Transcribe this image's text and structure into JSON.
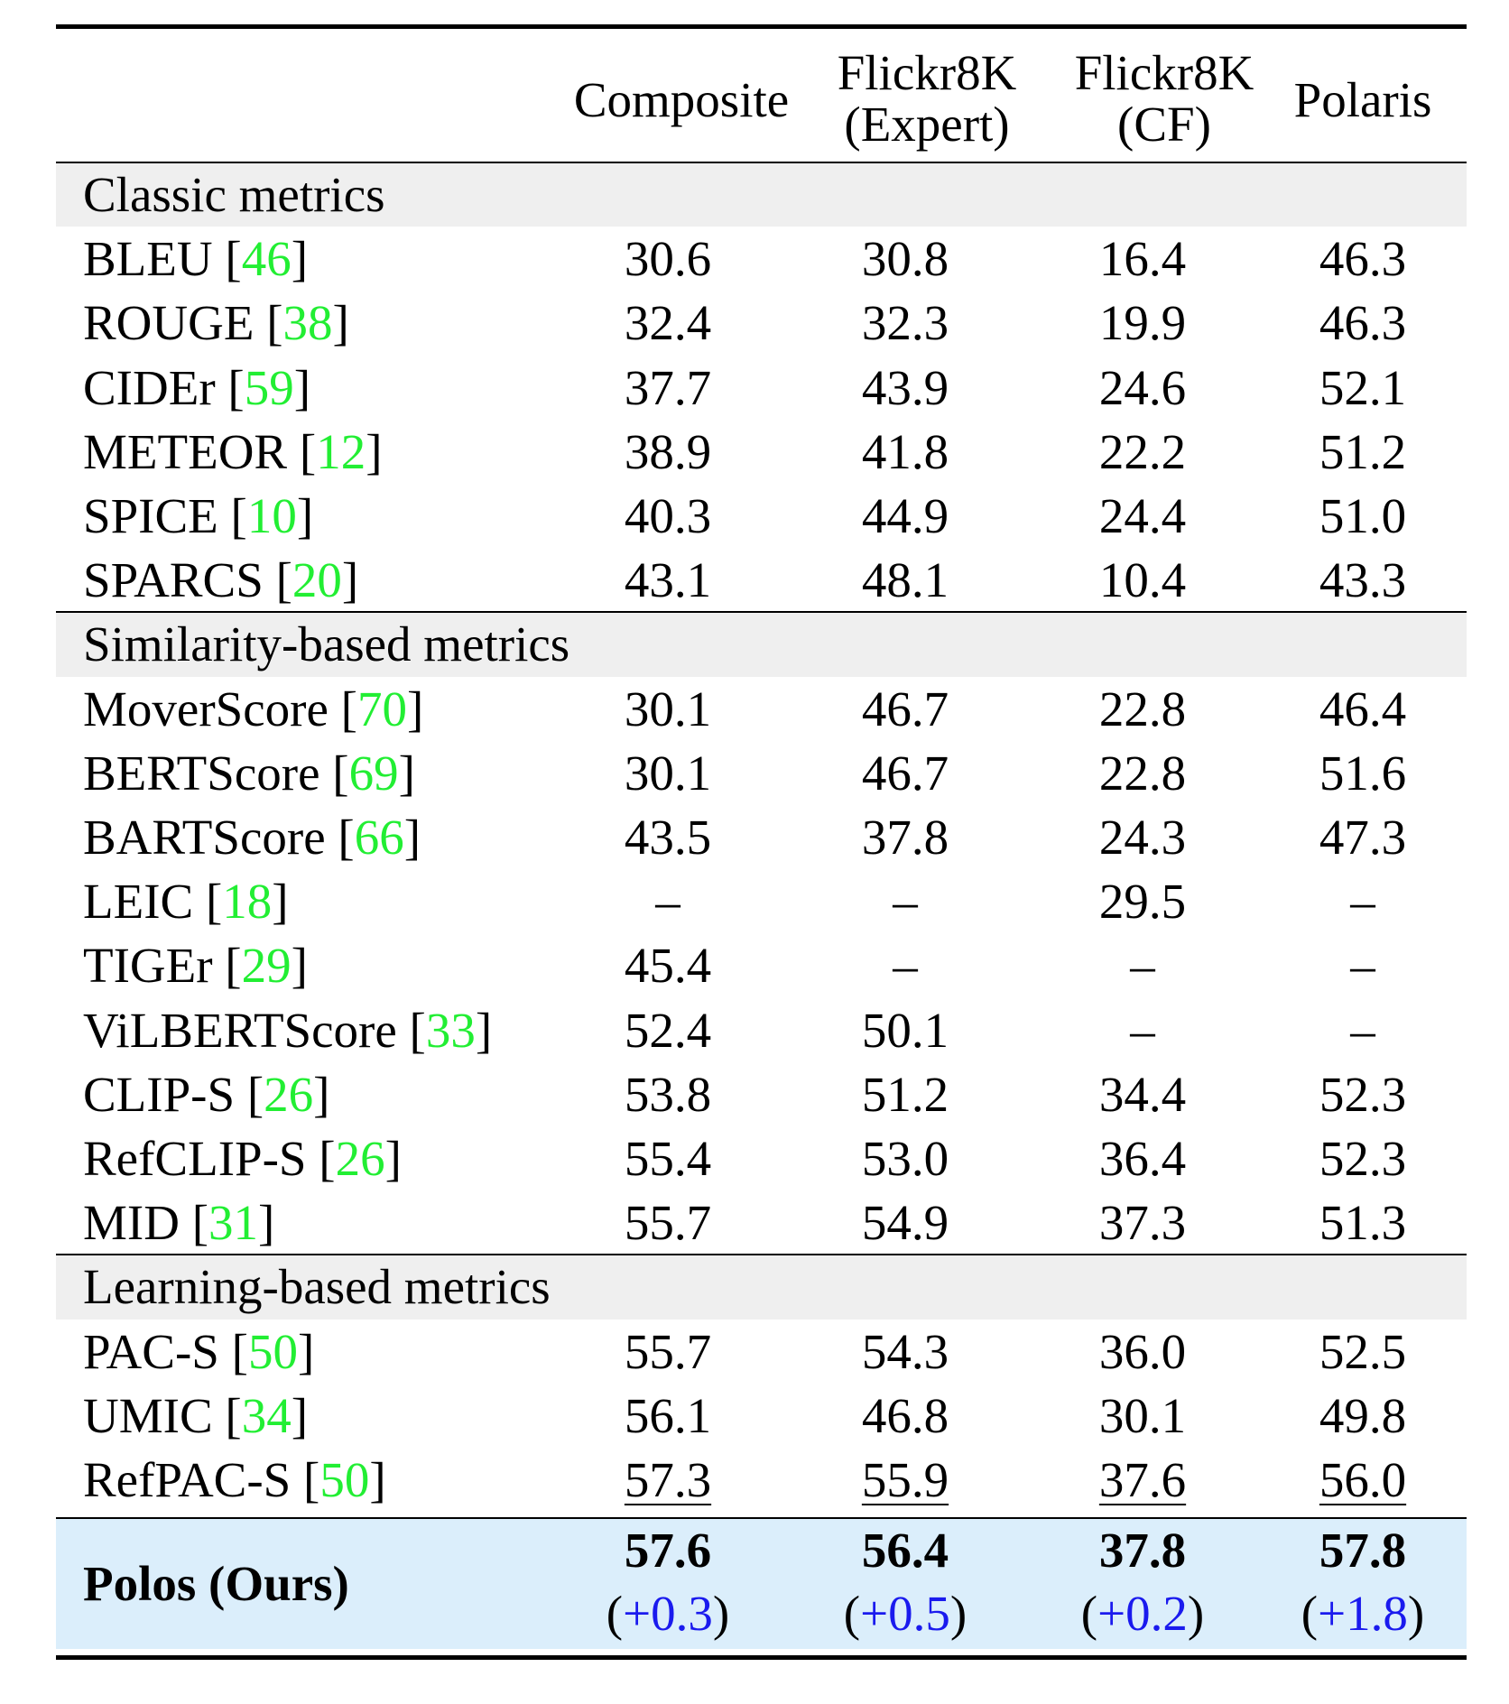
{
  "columns": [
    "",
    "Composite",
    "Flickr8K\n(Expert)",
    "Flickr8K\n(CF)",
    "Polaris"
  ],
  "header": {
    "composite": "Composite",
    "expert_l1": "Flickr8K",
    "expert_l2": "(Expert)",
    "cf_l1": "Flickr8K",
    "cf_l2": "(CF)",
    "polaris": "Polaris"
  },
  "colors": {
    "citation": "#22ee33",
    "delta": "#1a1aee",
    "group_band": "#efefef",
    "ours_band": "#dbeefb"
  },
  "groups": [
    {
      "title": "Classic metrics",
      "rows": [
        {
          "name": "BLEU",
          "ref": "46",
          "values": [
            "30.6",
            "30.8",
            "16.4",
            "46.3"
          ]
        },
        {
          "name": "ROUGE",
          "ref": "38",
          "values": [
            "32.4",
            "32.3",
            "19.9",
            "46.3"
          ]
        },
        {
          "name": "CIDEr",
          "ref": "59",
          "values": [
            "37.7",
            "43.9",
            "24.6",
            "52.1"
          ]
        },
        {
          "name": "METEOR",
          "ref": "12",
          "values": [
            "38.9",
            "41.8",
            "22.2",
            "51.2"
          ]
        },
        {
          "name": "SPICE",
          "ref": "10",
          "values": [
            "40.3",
            "44.9",
            "24.4",
            "51.0"
          ]
        },
        {
          "name": "SPARCS",
          "ref": "20",
          "values": [
            "43.1",
            "48.1",
            "10.4",
            "43.3"
          ]
        }
      ]
    },
    {
      "title": "Similarity-based metrics",
      "rows": [
        {
          "name": "MoverScore",
          "ref": "70",
          "values": [
            "30.1",
            "46.7",
            "22.8",
            "46.4"
          ]
        },
        {
          "name": "BERTScore",
          "ref": "69",
          "values": [
            "30.1",
            "46.7",
            "22.8",
            "51.6"
          ]
        },
        {
          "name": "BARTScore",
          "ref": "66",
          "values": [
            "43.5",
            "37.8",
            "24.3",
            "47.3"
          ]
        },
        {
          "name": "LEIC",
          "ref": "18",
          "values": [
            "–",
            "–",
            "29.5",
            "–"
          ]
        },
        {
          "name": "TIGEr",
          "ref": "29",
          "values": [
            "45.4",
            "–",
            "–",
            "–"
          ]
        },
        {
          "name": "ViLBERTScore",
          "ref": "33",
          "values": [
            "52.4",
            "50.1",
            "–",
            "–"
          ]
        },
        {
          "name": "CLIP-S",
          "ref": "26",
          "values": [
            "53.8",
            "51.2",
            "34.4",
            "52.3"
          ]
        },
        {
          "name": "RefCLIP-S",
          "ref": "26",
          "values": [
            "55.4",
            "53.0",
            "36.4",
            "52.3"
          ]
        },
        {
          "name": "MID",
          "ref": "31",
          "values": [
            "55.7",
            "54.9",
            "37.3",
            "51.3"
          ]
        }
      ]
    },
    {
      "title": "Learning-based metrics",
      "rows": [
        {
          "name": "PAC-S",
          "ref": "50",
          "values": [
            "55.7",
            "54.3",
            "36.0",
            "52.5"
          ]
        },
        {
          "name": "UMIC",
          "ref": "34",
          "values": [
            "56.1",
            "46.8",
            "30.1",
            "49.8"
          ]
        },
        {
          "name": "RefPAC-S",
          "ref": "50",
          "values": [
            "57.3",
            "55.9",
            "37.6",
            "56.0"
          ],
          "underlined": true
        }
      ]
    }
  ],
  "ours": {
    "name": "Polos (Ours)",
    "values": [
      "57.6",
      "56.4",
      "37.8",
      "57.8"
    ],
    "deltas": [
      "+0.3",
      "+0.5",
      "+0.2",
      "+1.8"
    ]
  }
}
